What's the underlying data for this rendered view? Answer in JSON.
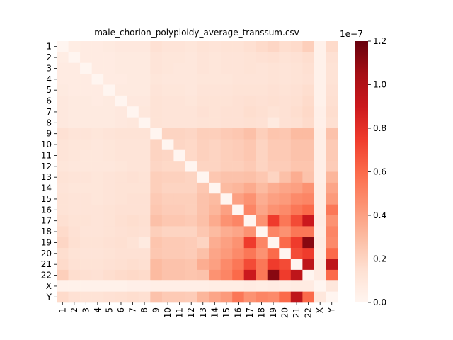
{
  "chart_data": {
    "type": "heatmap",
    "title": "male_chorion_polyploidy_average_transsum.csv",
    "xlabel": "",
    "ylabel": "",
    "labels": [
      "1",
      "2",
      "3",
      "4",
      "5",
      "6",
      "7",
      "8",
      "9",
      "10",
      "11",
      "12",
      "13",
      "14",
      "15",
      "16",
      "17",
      "18",
      "19",
      "20",
      "21",
      "22",
      "X",
      "Y"
    ],
    "colorbar": {
      "min": 0.0,
      "max": 1.2,
      "ticks": [
        "0.0",
        "0.2",
        "0.4",
        "0.6",
        "0.8",
        "1.0",
        "1.2"
      ],
      "tick_values": [
        0.0,
        0.2,
        0.4,
        0.6,
        0.8,
        1.0,
        1.2
      ],
      "exponent_label": "1e−7"
    },
    "colormap": "Reds",
    "values": [
      [
        0.0,
        0.06,
        0.07,
        0.07,
        0.08,
        0.09,
        0.09,
        0.09,
        0.14,
        0.12,
        0.12,
        0.11,
        0.13,
        0.12,
        0.13,
        0.13,
        0.15,
        0.17,
        0.19,
        0.16,
        0.17,
        0.22,
        0.03,
        0.17
      ],
      [
        0.06,
        0.0,
        0.07,
        0.07,
        0.07,
        0.08,
        0.08,
        0.08,
        0.12,
        0.11,
        0.11,
        0.1,
        0.12,
        0.11,
        0.12,
        0.12,
        0.13,
        0.14,
        0.15,
        0.13,
        0.14,
        0.16,
        0.03,
        0.14
      ],
      [
        0.07,
        0.07,
        0.0,
        0.07,
        0.07,
        0.08,
        0.08,
        0.08,
        0.12,
        0.11,
        0.1,
        0.1,
        0.12,
        0.11,
        0.12,
        0.12,
        0.13,
        0.12,
        0.13,
        0.12,
        0.13,
        0.15,
        0.03,
        0.13
      ],
      [
        0.07,
        0.07,
        0.07,
        0.0,
        0.07,
        0.07,
        0.08,
        0.08,
        0.11,
        0.1,
        0.1,
        0.1,
        0.11,
        0.11,
        0.11,
        0.12,
        0.12,
        0.12,
        0.13,
        0.12,
        0.13,
        0.14,
        0.03,
        0.13
      ],
      [
        0.08,
        0.07,
        0.07,
        0.07,
        0.0,
        0.08,
        0.08,
        0.08,
        0.12,
        0.11,
        0.11,
        0.1,
        0.12,
        0.12,
        0.12,
        0.13,
        0.13,
        0.13,
        0.14,
        0.13,
        0.14,
        0.16,
        0.03,
        0.14
      ],
      [
        0.09,
        0.08,
        0.08,
        0.07,
        0.08,
        0.0,
        0.09,
        0.09,
        0.13,
        0.12,
        0.12,
        0.11,
        0.13,
        0.13,
        0.13,
        0.14,
        0.15,
        0.14,
        0.15,
        0.14,
        0.15,
        0.17,
        0.03,
        0.15
      ],
      [
        0.09,
        0.08,
        0.08,
        0.08,
        0.08,
        0.09,
        0.0,
        0.1,
        0.13,
        0.12,
        0.12,
        0.12,
        0.14,
        0.13,
        0.14,
        0.14,
        0.16,
        0.15,
        0.13,
        0.14,
        0.16,
        0.18,
        0.04,
        0.16
      ],
      [
        0.09,
        0.08,
        0.08,
        0.08,
        0.08,
        0.09,
        0.1,
        0.0,
        0.13,
        0.12,
        0.12,
        0.12,
        0.13,
        0.13,
        0.14,
        0.14,
        0.15,
        0.14,
        0.08,
        0.14,
        0.15,
        0.17,
        0.04,
        0.15
      ],
      [
        0.14,
        0.12,
        0.12,
        0.11,
        0.12,
        0.13,
        0.13,
        0.13,
        0.0,
        0.2,
        0.2,
        0.19,
        0.22,
        0.22,
        0.24,
        0.25,
        0.28,
        0.22,
        0.26,
        0.25,
        0.3,
        0.3,
        0.05,
        0.27
      ],
      [
        0.12,
        0.11,
        0.11,
        0.1,
        0.11,
        0.12,
        0.12,
        0.12,
        0.2,
        0.0,
        0.19,
        0.18,
        0.21,
        0.2,
        0.22,
        0.23,
        0.25,
        0.2,
        0.24,
        0.24,
        0.27,
        0.27,
        0.05,
        0.24
      ],
      [
        0.12,
        0.11,
        0.1,
        0.1,
        0.11,
        0.12,
        0.12,
        0.12,
        0.2,
        0.19,
        0.0,
        0.18,
        0.21,
        0.2,
        0.22,
        0.23,
        0.25,
        0.2,
        0.24,
        0.24,
        0.27,
        0.27,
        0.05,
        0.24
      ],
      [
        0.11,
        0.1,
        0.1,
        0.1,
        0.1,
        0.11,
        0.12,
        0.12,
        0.19,
        0.18,
        0.18,
        0.0,
        0.2,
        0.2,
        0.22,
        0.22,
        0.24,
        0.2,
        0.23,
        0.23,
        0.26,
        0.26,
        0.05,
        0.23
      ],
      [
        0.13,
        0.12,
        0.12,
        0.11,
        0.12,
        0.13,
        0.14,
        0.13,
        0.22,
        0.21,
        0.21,
        0.2,
        0.0,
        0.25,
        0.27,
        0.27,
        0.28,
        0.25,
        0.2,
        0.28,
        0.35,
        0.27,
        0.05,
        0.32
      ],
      [
        0.12,
        0.11,
        0.11,
        0.11,
        0.12,
        0.13,
        0.13,
        0.13,
        0.22,
        0.2,
        0.2,
        0.2,
        0.25,
        0.0,
        0.3,
        0.32,
        0.36,
        0.3,
        0.35,
        0.38,
        0.4,
        0.45,
        0.06,
        0.38
      ],
      [
        0.13,
        0.12,
        0.12,
        0.11,
        0.12,
        0.13,
        0.14,
        0.14,
        0.24,
        0.22,
        0.22,
        0.22,
        0.27,
        0.3,
        0.0,
        0.4,
        0.45,
        0.35,
        0.4,
        0.42,
        0.48,
        0.5,
        0.06,
        0.42
      ],
      [
        0.13,
        0.12,
        0.12,
        0.12,
        0.13,
        0.14,
        0.14,
        0.14,
        0.25,
        0.23,
        0.23,
        0.22,
        0.27,
        0.32,
        0.4,
        0.0,
        0.5,
        0.38,
        0.45,
        0.48,
        0.55,
        0.6,
        0.06,
        0.55
      ],
      [
        0.15,
        0.13,
        0.13,
        0.12,
        0.13,
        0.15,
        0.16,
        0.15,
        0.28,
        0.25,
        0.25,
        0.24,
        0.28,
        0.36,
        0.45,
        0.5,
        0.0,
        0.45,
        0.75,
        0.55,
        0.7,
        0.9,
        0.07,
        0.45
      ],
      [
        0.17,
        0.14,
        0.12,
        0.12,
        0.13,
        0.14,
        0.15,
        0.14,
        0.22,
        0.2,
        0.2,
        0.2,
        0.25,
        0.3,
        0.35,
        0.38,
        0.45,
        0.0,
        0.5,
        0.45,
        0.55,
        0.55,
        0.06,
        0.5
      ],
      [
        0.19,
        0.15,
        0.13,
        0.13,
        0.14,
        0.15,
        0.13,
        0.08,
        0.26,
        0.24,
        0.24,
        0.23,
        0.2,
        0.35,
        0.4,
        0.45,
        0.75,
        0.5,
        0.0,
        0.6,
        0.75,
        1.12,
        0.07,
        0.48
      ],
      [
        0.16,
        0.13,
        0.12,
        0.12,
        0.13,
        0.14,
        0.14,
        0.14,
        0.25,
        0.24,
        0.24,
        0.23,
        0.28,
        0.38,
        0.42,
        0.48,
        0.55,
        0.45,
        0.6,
        0.0,
        0.7,
        0.75,
        0.06,
        0.6
      ],
      [
        0.17,
        0.14,
        0.13,
        0.13,
        0.14,
        0.15,
        0.16,
        0.15,
        0.3,
        0.27,
        0.27,
        0.26,
        0.35,
        0.4,
        0.48,
        0.55,
        0.7,
        0.55,
        0.75,
        0.7,
        0.0,
        0.95,
        0.07,
        0.95
      ],
      [
        0.22,
        0.16,
        0.15,
        0.14,
        0.16,
        0.17,
        0.18,
        0.17,
        0.3,
        0.27,
        0.27,
        0.26,
        0.27,
        0.45,
        0.5,
        0.6,
        0.9,
        0.55,
        1.12,
        0.75,
        0.95,
        0.0,
        0.07,
        0.6
      ],
      [
        0.03,
        0.03,
        0.03,
        0.03,
        0.03,
        0.03,
        0.04,
        0.04,
        0.05,
        0.05,
        0.05,
        0.05,
        0.05,
        0.06,
        0.06,
        0.06,
        0.07,
        0.06,
        0.07,
        0.06,
        0.07,
        0.07,
        0.0,
        0.1
      ],
      [
        0.17,
        0.14,
        0.13,
        0.13,
        0.14,
        0.15,
        0.16,
        0.15,
        0.27,
        0.24,
        0.24,
        0.23,
        0.32,
        0.38,
        0.42,
        0.55,
        0.45,
        0.5,
        0.48,
        0.6,
        0.95,
        0.6,
        0.1,
        0.0
      ]
    ]
  }
}
